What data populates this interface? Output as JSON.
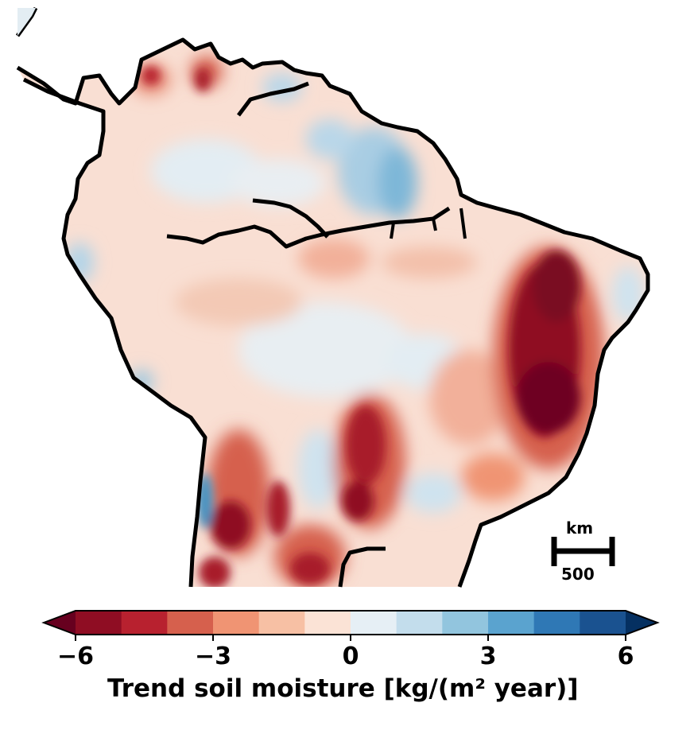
{
  "map": {
    "region": "South America",
    "colors": {
      "ocean": "#ffffff",
      "base": "#f9dfd3",
      "light_red": "#f2b09a",
      "mid_red": "#d6604d",
      "dark_red": "#a81f2b",
      "darkest_red": "#67001f",
      "light_blue": "#d1e5f0",
      "mid_blue": "#92c5de",
      "blue": "#4393c3",
      "outline": "#000000"
    }
  },
  "colorbar": {
    "label": "Trend soil moisture [kg/(m² year)]",
    "min": -6,
    "max": 6,
    "extend": "both",
    "ticks": [
      "−6",
      "−3",
      "0",
      "3",
      "6"
    ],
    "tick_values": [
      -6,
      -3,
      0,
      3,
      6
    ],
    "bins": [
      {
        "from": -6,
        "to": -5,
        "color": "#8f0d23"
      },
      {
        "from": -5,
        "to": -4,
        "color": "#b8212f"
      },
      {
        "from": -4,
        "to": -3,
        "color": "#d6604d"
      },
      {
        "from": -3,
        "to": -2,
        "color": "#f09473"
      },
      {
        "from": -2,
        "to": -1,
        "color": "#f7c0a4"
      },
      {
        "from": -1,
        "to": 0,
        "color": "#fbe3d6"
      },
      {
        "from": 0,
        "to": 1,
        "color": "#e6eff5"
      },
      {
        "from": 1,
        "to": 2,
        "color": "#c3ddec"
      },
      {
        "from": 2,
        "to": 3,
        "color": "#92c5de"
      },
      {
        "from": 3,
        "to": 4,
        "color": "#5aa3cf"
      },
      {
        "from": 4,
        "to": 5,
        "color": "#2f78b5"
      },
      {
        "from": 5,
        "to": 6,
        "color": "#1a5290"
      }
    ],
    "under_color": "#67001f",
    "over_color": "#053061"
  },
  "scale_bar": {
    "unit": "km",
    "value": "500"
  }
}
